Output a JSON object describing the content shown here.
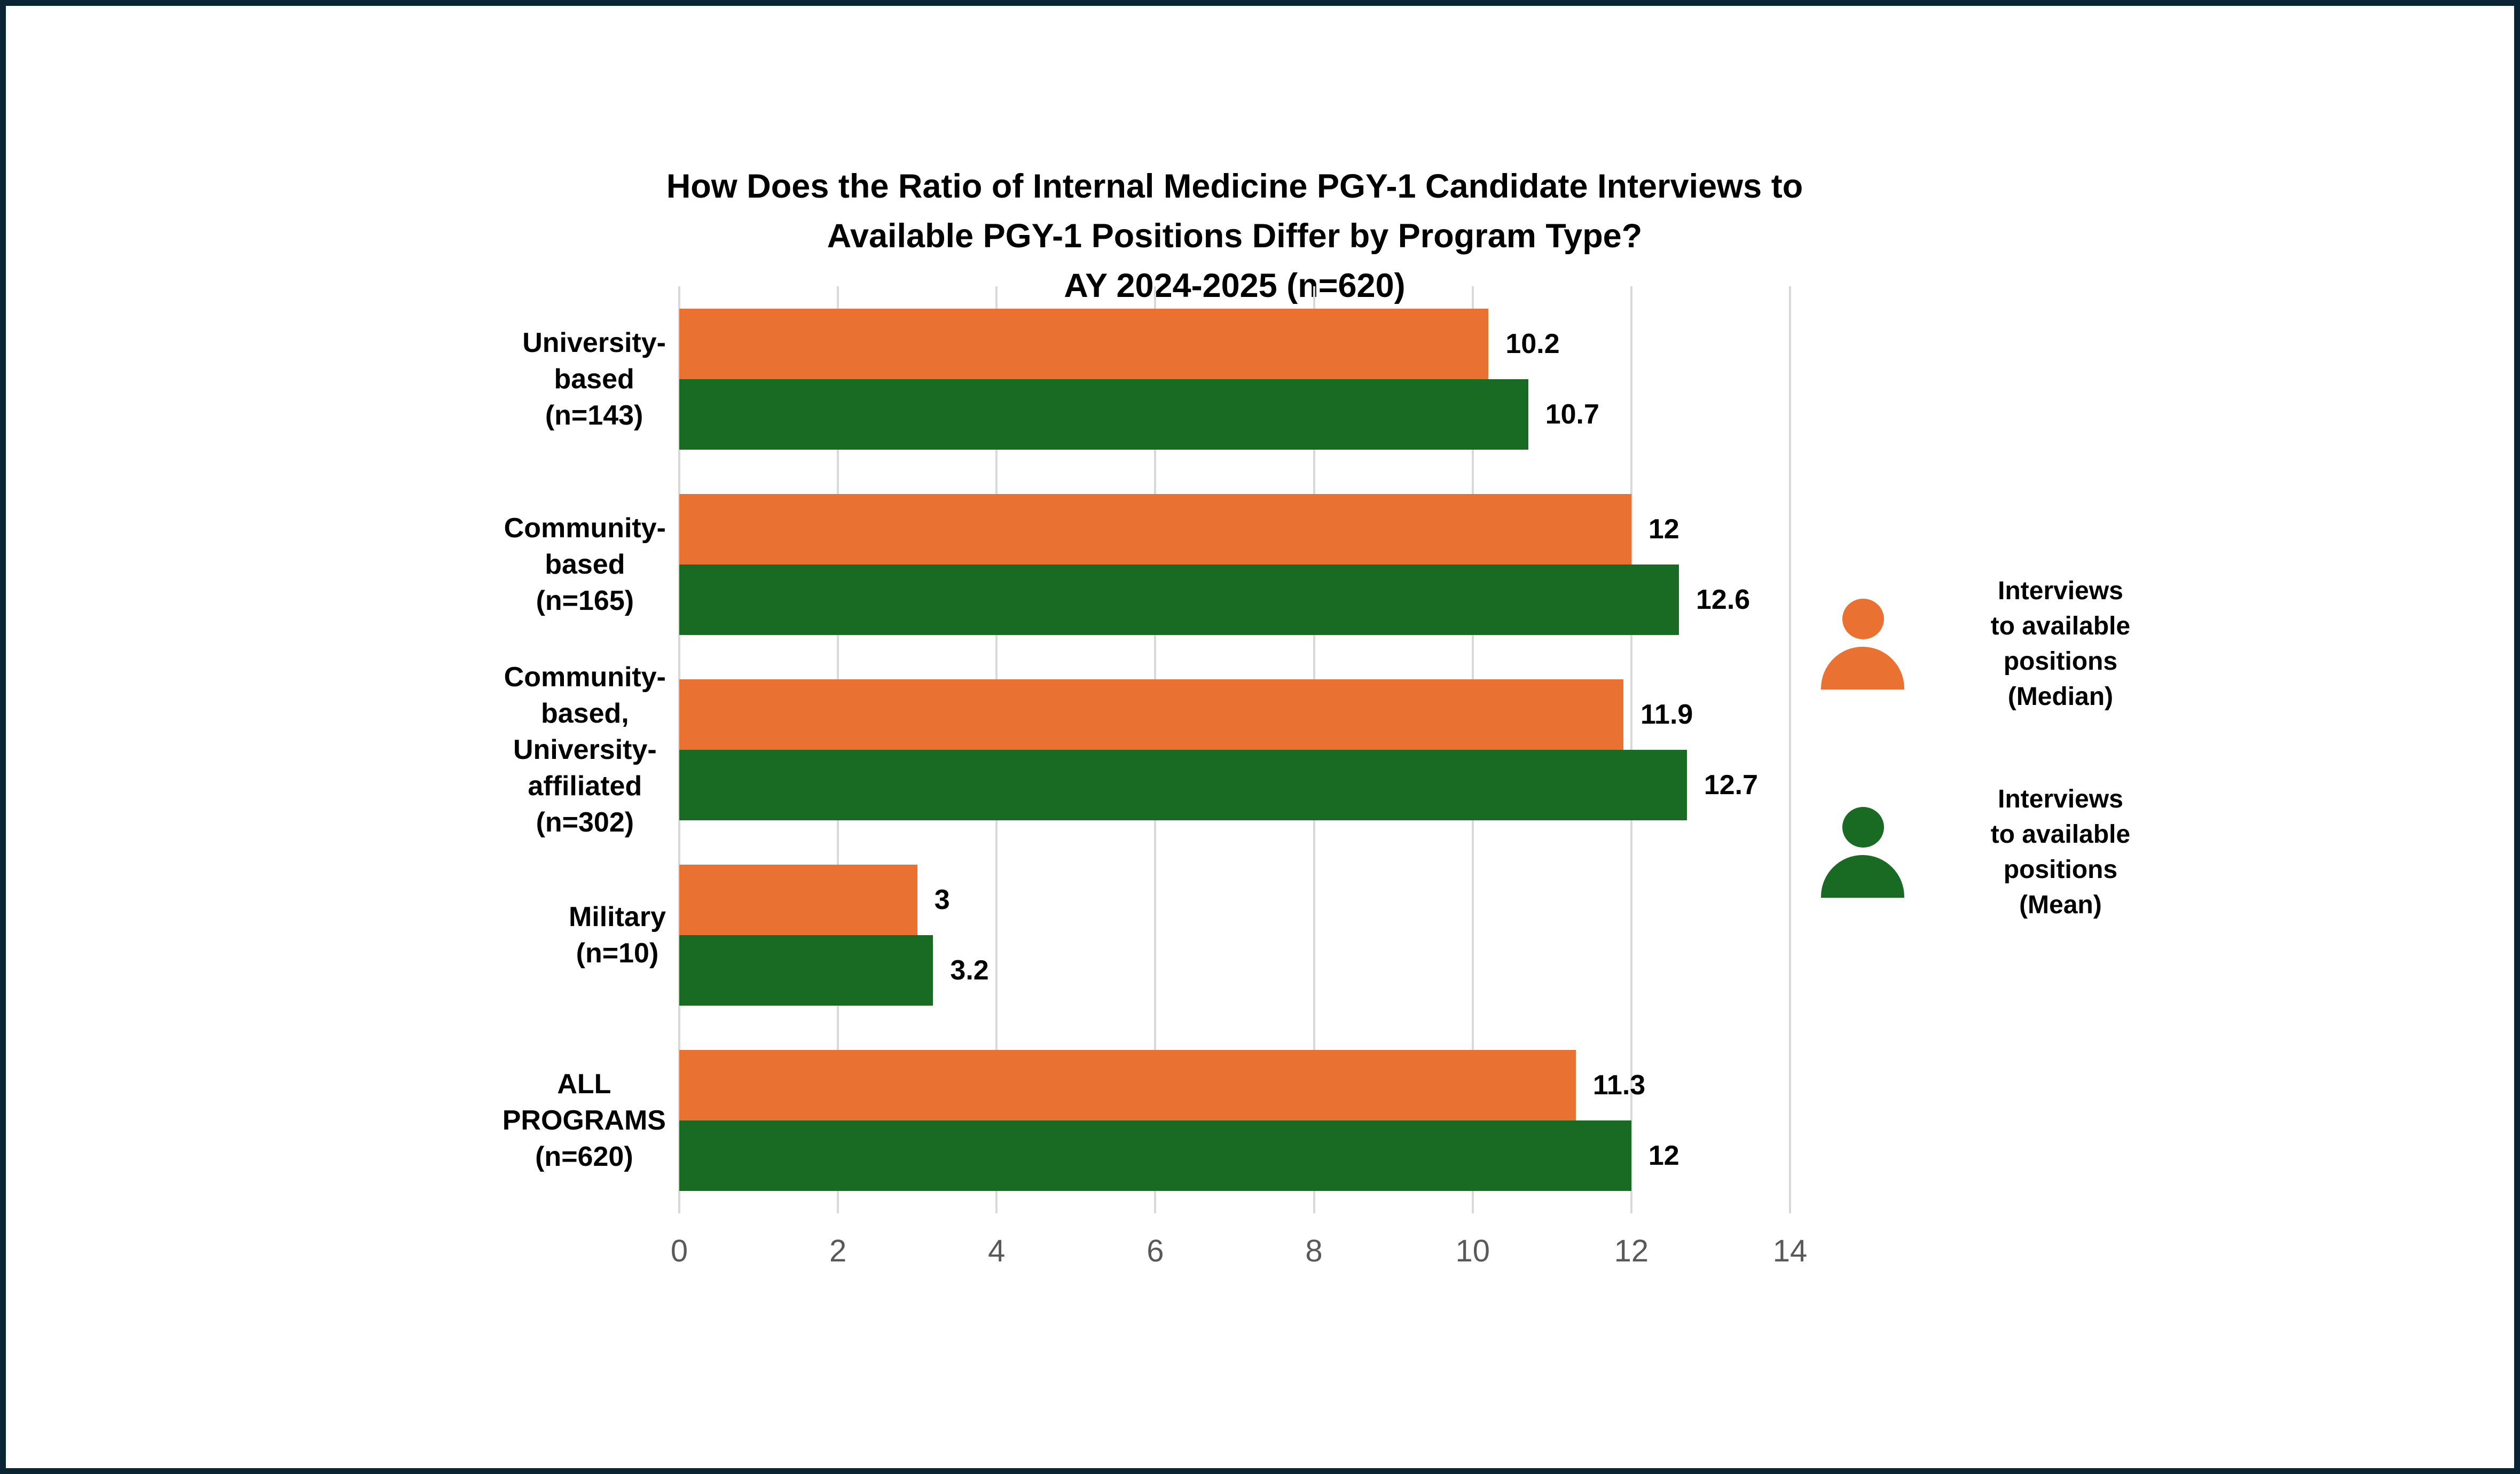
{
  "chart_data": {
    "type": "bar",
    "orientation": "horizontal",
    "title": "How Does the Ratio of Internal Medicine PGY-1 Candidate Interviews to Available PGY-1 Positions Differ by Program Type? AY 2024-2025 (n=620)",
    "title_lines": [
      "How Does the Ratio of Internal Medicine PGY-1 Candidate Interviews to",
      "Available PGY-1 Positions Differ by Program Type?",
      "AY 2024-2025 (n=620)"
    ],
    "categories": [
      "University-based (n=143)",
      "Community-based (n=165)",
      "Community-based, University-affiliated (n=302)",
      "Military (n=10)",
      "ALL PROGRAMS (n=620)"
    ],
    "category_label_lines": [
      [
        "University-",
        "based",
        "(n=143)"
      ],
      [
        "Community-",
        "based",
        "(n=165)"
      ],
      [
        "Community-",
        "based,",
        "University-",
        "affiliated",
        "(n=302)"
      ],
      [
        "Military",
        "(n=10)"
      ],
      [
        "ALL",
        "PROGRAMS",
        "(n=620)"
      ]
    ],
    "series": [
      {
        "name": "Interviews to available positions (Median)",
        "legend_lines": [
          "Interviews",
          "to available",
          "positions",
          "(Median)"
        ],
        "color": "#E97132",
        "values": [
          10.2,
          12,
          11.9,
          3,
          11.3
        ],
        "labels": [
          "10.2",
          "12",
          "11.9",
          "3",
          "11.3"
        ]
      },
      {
        "name": "Interviews to available positions (Mean)",
        "legend_lines": [
          "Interviews",
          "to available",
          "positions",
          "(Mean)"
        ],
        "color": "#196B24",
        "values": [
          10.7,
          12.6,
          12.7,
          3.2,
          12
        ],
        "labels": [
          "10.7",
          "12.6",
          "12.7",
          "3.2",
          "12"
        ]
      }
    ],
    "x_axis": {
      "min": 0,
      "max": 14,
      "tick_step": 2,
      "tick_labels": [
        "0",
        "2",
        "4",
        "6",
        "8",
        "10",
        "12",
        "14"
      ]
    },
    "grid": true,
    "legend_position": "right",
    "colors": {
      "median_bar": "#E97132",
      "mean_bar": "#196B24",
      "gridline": "#D9D9D9",
      "tick_text": "#595959",
      "label_text": "#000000",
      "background": "#FFFFFF",
      "frame_border": "#0A2433"
    }
  }
}
